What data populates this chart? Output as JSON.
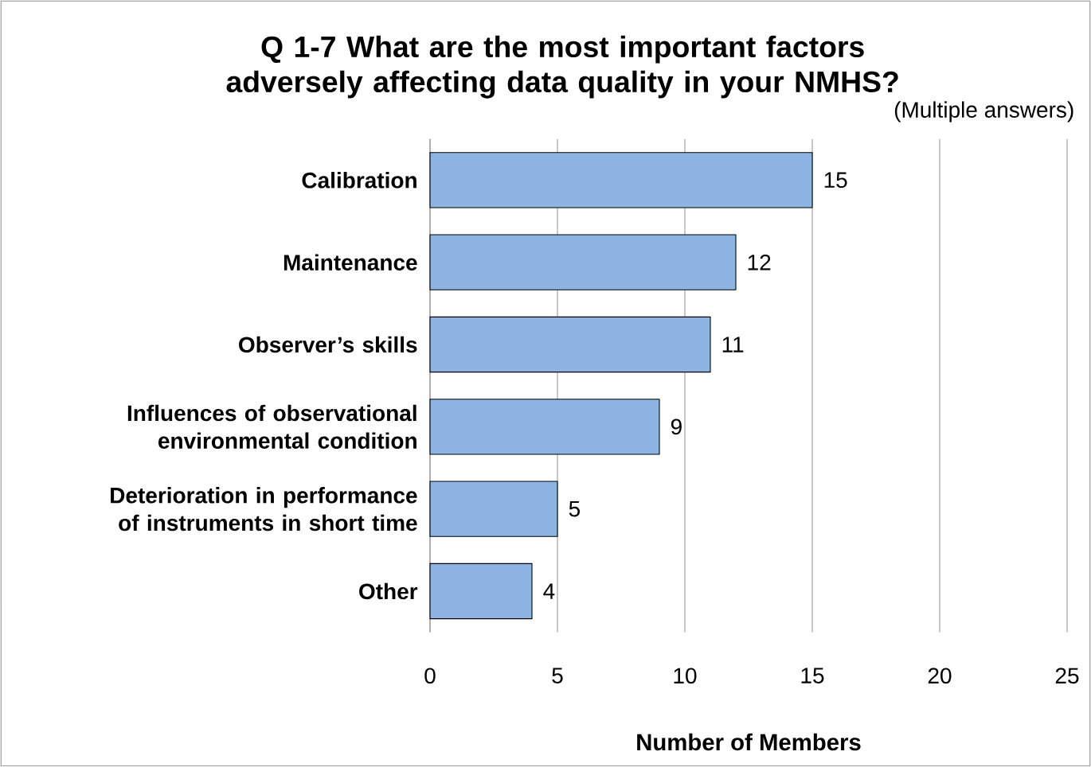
{
  "chart_data": {
    "type": "bar",
    "orientation": "horizontal",
    "title": "Q 1-7 What are the most important factors adversely affecting data quality in your NMHS?",
    "categories": [
      "Calibration",
      "Maintenance",
      "Observer’s skills",
      "Influences of observational environmental condition",
      "Deterioration in performance of instruments in short time",
      "Other"
    ],
    "values": [
      15,
      12,
      11,
      9,
      5,
      4
    ],
    "color": "#8eb4e3",
    "xlabel": "Number of Members",
    "xlim": [
      0,
      25
    ],
    "xticks": [
      0,
      5,
      10,
      15,
      20,
      25
    ],
    "grid": "x",
    "data_labels": true,
    "annotations": [
      "(Multiple answers)"
    ]
  }
}
